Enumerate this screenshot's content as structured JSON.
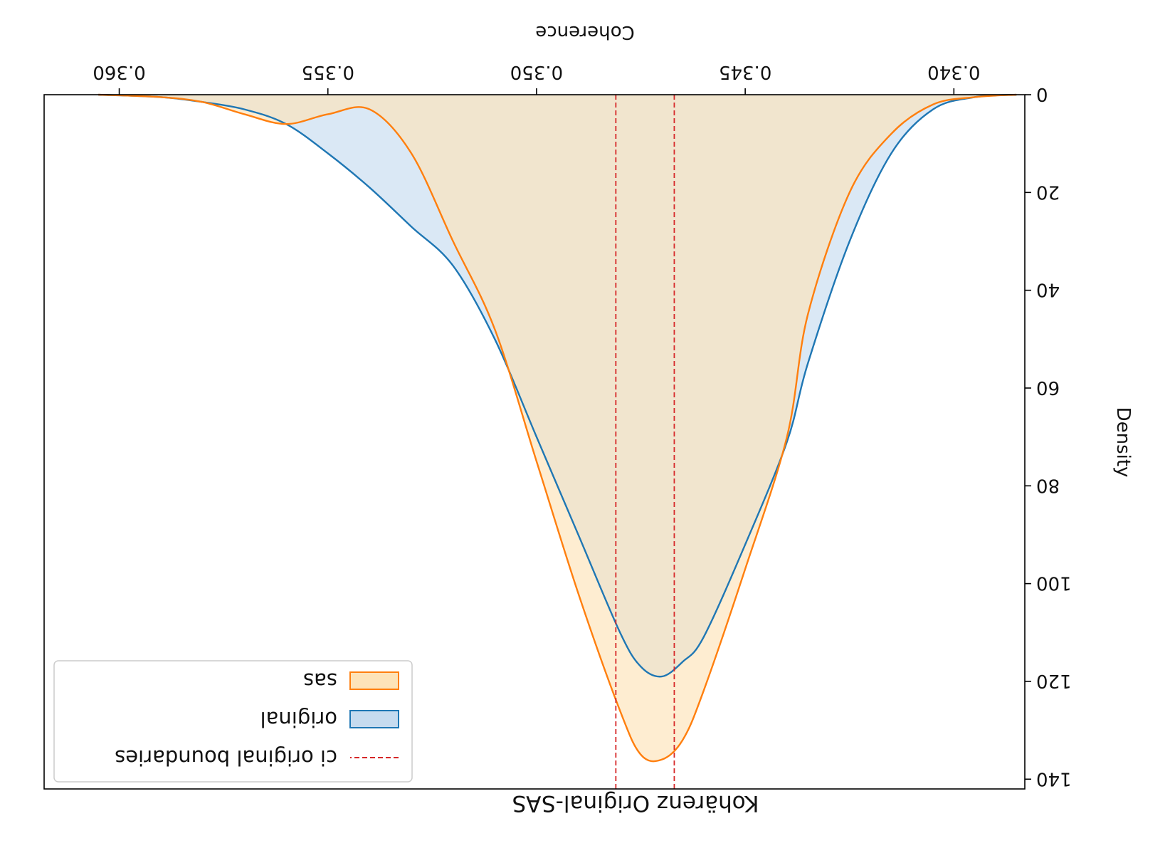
{
  "chart_data": {
    "type": "area",
    "title": "Kohärenz Original-SAS",
    "xlabel": "Coherence",
    "ylabel": "Density",
    "xlim": [
      0.3383,
      0.3618
    ],
    "ylim": [
      0,
      142
    ],
    "xticks": [
      "0.340",
      "0.345",
      "0.350",
      "0.355",
      "0.360"
    ],
    "yticks": [
      "0",
      "20",
      "40",
      "60",
      "80",
      "100",
      "120",
      "140"
    ],
    "grid": false,
    "legend_position": "upper-left",
    "series": [
      {
        "name": "original",
        "color": "#1f77b4",
        "fill": "#c6dbef",
        "x": [
          0.3385,
          0.3395,
          0.3405,
          0.3415,
          0.3425,
          0.3435,
          0.344,
          0.345,
          0.346,
          0.3465,
          0.347,
          0.3475,
          0.348,
          0.349,
          0.35,
          0.351,
          0.352,
          0.353,
          0.354,
          0.355,
          0.356,
          0.357,
          0.358,
          0.359,
          0.3605
        ],
        "y": [
          0,
          0.5,
          3,
          12,
          30,
          55,
          71,
          92,
          111,
          116,
          119,
          117,
          110,
          90,
          70,
          50,
          35,
          27,
          19,
          12,
          6,
          3,
          1.5,
          0.5,
          0
        ]
      },
      {
        "name": "sas",
        "color": "#ff7f0e",
        "fill": "#fde3b8",
        "x": [
          0.3385,
          0.3395,
          0.3405,
          0.3415,
          0.3425,
          0.3435,
          0.344,
          0.345,
          0.346,
          0.3465,
          0.347,
          0.3475,
          0.348,
          0.349,
          0.35,
          0.351,
          0.352,
          0.353,
          0.354,
          0.355,
          0.356,
          0.357,
          0.358,
          0.359,
          0.3605
        ],
        "y": [
          0,
          0.5,
          2,
          8,
          20,
          45,
          70,
          97,
          122,
          132,
          136,
          135,
          126,
          102,
          75,
          48,
          30,
          12,
          3,
          4,
          6,
          4,
          1.5,
          0.5,
          0
        ]
      }
    ],
    "ci_original_boundaries": {
      "name": "ci original boundaries",
      "color": "#d62728",
      "x": [
        0.3467,
        0.3481
      ]
    }
  }
}
